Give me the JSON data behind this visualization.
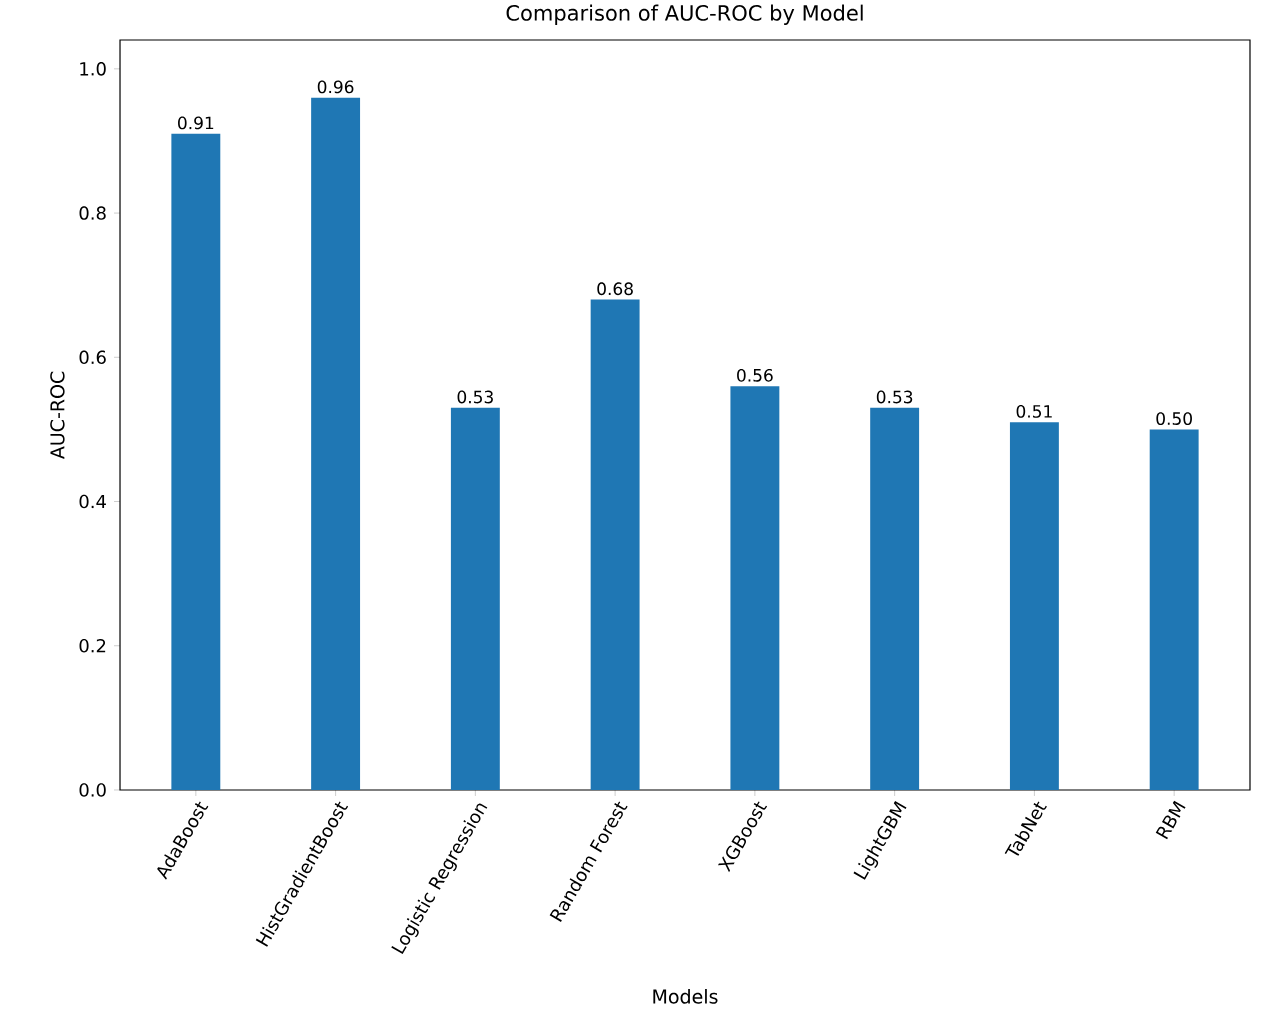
{
  "chart_data": {
    "type": "bar",
    "title": "Comparison of AUC-ROC by Model",
    "xlabel": "Models",
    "ylabel": "AUC-ROC",
    "categories": [
      "AdaBoost",
      "HistGradientBoost",
      "Logistic Regression",
      "Random Forest",
      "XGBoost",
      "LightGBM",
      "TabNet",
      "RBM"
    ],
    "values": [
      0.91,
      0.96,
      0.53,
      0.68,
      0.56,
      0.53,
      0.51,
      0.5
    ],
    "value_labels": [
      "0.91",
      "0.96",
      "0.53",
      "0.68",
      "0.56",
      "0.53",
      "0.51",
      "0.50"
    ],
    "color": "#1f77b4",
    "ylim": [
      0,
      1.04
    ],
    "yticks": [
      {
        "value": 0,
        "label": "0.0"
      },
      {
        "value": 0.2,
        "label": "0.2"
      },
      {
        "value": 0.4,
        "label": "0.4"
      },
      {
        "value": 0.6,
        "label": "0.6"
      },
      {
        "value": 0.8,
        "label": "0.8"
      },
      {
        "value": 1.0,
        "label": "1.0"
      }
    ]
  }
}
